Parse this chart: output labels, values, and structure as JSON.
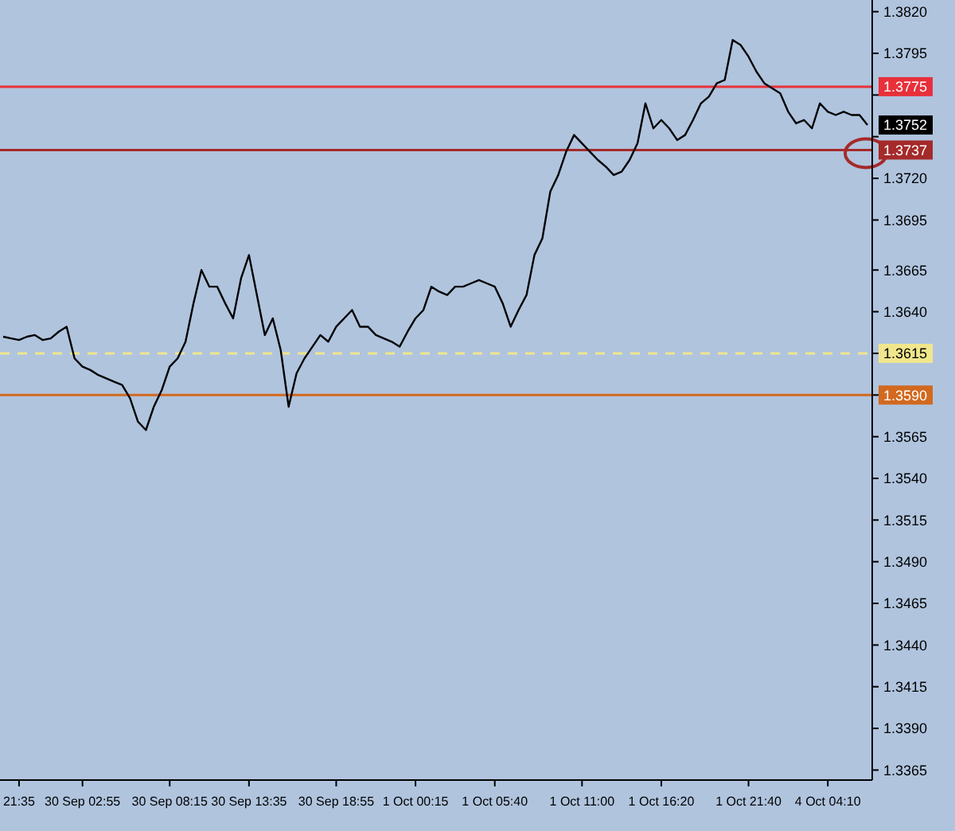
{
  "chart_data": {
    "type": "line",
    "categories": [
      null,
      null,
      "21:35",
      null,
      null,
      null,
      null,
      null,
      null,
      null,
      "30 Sep 02:55",
      null,
      null,
      null,
      null,
      null,
      null,
      null,
      null,
      null,
      null,
      "30 Sep 08:15",
      null,
      null,
      null,
      null,
      null,
      null,
      null,
      null,
      null,
      "30 Sep 13:35",
      null,
      null,
      null,
      null,
      null,
      null,
      null,
      null,
      null,
      null,
      "30 Sep 18:55",
      null,
      null,
      null,
      null,
      null,
      null,
      null,
      null,
      null,
      "1 Oct 00:15",
      null,
      null,
      null,
      null,
      null,
      null,
      null,
      null,
      null,
      "1 Oct 05:40",
      null,
      null,
      null,
      null,
      null,
      null,
      null,
      null,
      null,
      null,
      "1 Oct 11:00",
      null,
      null,
      null,
      null,
      null,
      null,
      null,
      null,
      null,
      "1 Oct 16:20",
      null,
      null,
      null,
      null,
      null,
      null,
      null,
      null,
      null,
      null,
      "1 Oct 21:40",
      null,
      null,
      null,
      null,
      null,
      null,
      null,
      null,
      null,
      "4 Oct 04:10",
      null,
      null,
      null,
      null,
      null
    ],
    "series": [
      {
        "color": "#000000",
        "values": [
          1.3625,
          1.3624,
          1.3623,
          1.3625,
          1.3626,
          1.3623,
          1.3624,
          1.3628,
          1.3631,
          1.3612,
          1.3607,
          1.3605,
          1.3602,
          1.36,
          1.3598,
          1.3596,
          1.3588,
          1.3574,
          1.3569,
          1.3583,
          1.3593,
          1.3607,
          1.3612,
          1.3622,
          1.3645,
          1.3665,
          1.3655,
          1.3655,
          1.3645,
          1.3636,
          1.366,
          1.3674,
          1.365,
          1.3626,
          1.3636,
          1.3617,
          1.3583,
          1.3603,
          1.3612,
          1.3619,
          1.3626,
          1.3622,
          1.3631,
          1.3636,
          1.3641,
          1.3631,
          1.3631,
          1.3626,
          1.3624,
          1.3622,
          1.3619,
          1.3628,
          1.3636,
          1.3641,
          1.3655,
          1.3652,
          1.365,
          1.3655,
          1.3655,
          1.3657,
          1.3659,
          1.3657,
          1.3655,
          1.3645,
          1.3631,
          1.3641,
          1.365,
          1.3674,
          1.3684,
          1.3712,
          1.3722,
          1.3736,
          1.3746,
          1.3741,
          1.3736,
          1.3731,
          1.3727,
          1.3722,
          1.3724,
          1.3731,
          1.3741,
          1.3765,
          1.375,
          1.3755,
          1.375,
          1.3743,
          1.3746,
          1.3755,
          1.3765,
          1.3769,
          1.3777,
          1.3779,
          1.3803,
          1.38,
          1.3793,
          1.3784,
          1.3777,
          1.3774,
          1.3771,
          1.376,
          1.3753,
          1.3755,
          1.375,
          1.3765,
          1.376,
          1.3758,
          1.376,
          1.3758,
          1.3758,
          1.3752
        ]
      }
    ],
    "ylim": [
      1.3359,
      1.3827
    ],
    "yticks": [
      {
        "value": 1.382,
        "label": "1.3820"
      },
      1.3795,
      {
        "value": 1.377,
        "label": null
      },
      {
        "value": 1.3745,
        "label": null
      },
      {
        "value": 1.372,
        "label": "1.3720"
      },
      1.3695,
      1.3665,
      {
        "value": 1.364,
        "label": "1.3640"
      },
      {
        "value": 1.3615,
        "label": null
      },
      {
        "value": 1.359,
        "label": null
      },
      1.3565,
      {
        "value": 1.354,
        "label": "1.3540"
      },
      1.3515,
      {
        "value": 1.349,
        "label": "1.3490"
      },
      1.3465,
      {
        "value": 1.344,
        "label": "1.3440"
      },
      1.3415,
      {
        "value": 1.339,
        "label": "1.3390"
      },
      1.3365
    ],
    "ref_lines": [
      {
        "axis": "y",
        "value": 1.3775,
        "label": "1.3775",
        "color": "#e8303a"
      },
      {
        "axis": "y",
        "value": 1.3737,
        "label": "1.3737",
        "color": "#a52a2a"
      },
      {
        "axis": "y",
        "value": 1.3615,
        "label": "1.3615",
        "color": "#f0e68c",
        "line_style": "dashed"
      },
      {
        "axis": "y",
        "value": 1.359,
        "label": "1.3590",
        "color": "#d2691e"
      }
    ],
    "annotations": [
      "1.3752"
    ],
    "grid": false
  }
}
